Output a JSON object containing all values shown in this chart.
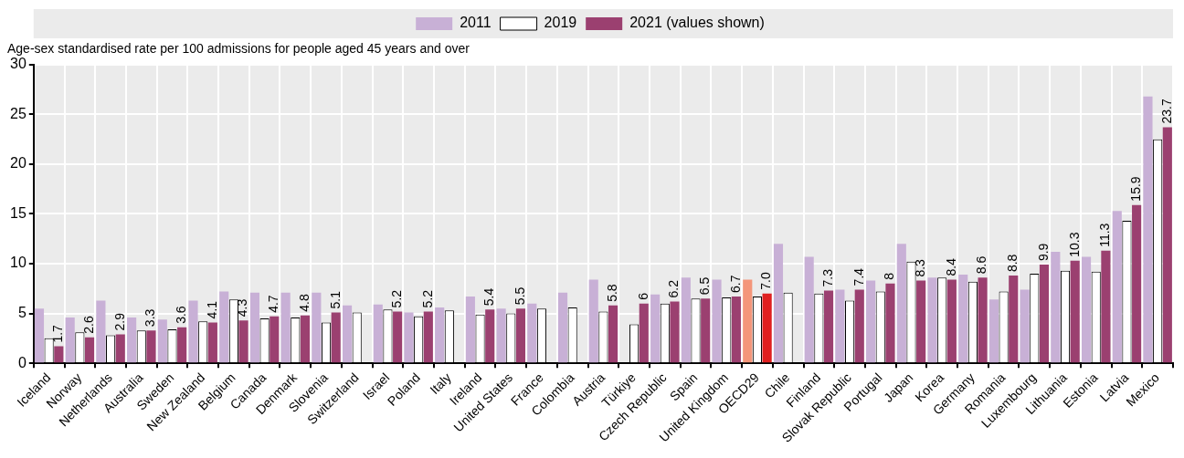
{
  "chart_data": {
    "type": "bar",
    "ylabel": "Age-sex standardised rate per 100 admissions for people aged 45 years and over",
    "categories": [
      "Iceland",
      "Norway",
      "Netherlands",
      "Australia",
      "Sweden",
      "New Zealand",
      "Belgium",
      "Canada",
      "Denmark",
      "Slovenia",
      "Switzerland",
      "Israel",
      "Poland",
      "Italy",
      "Ireland",
      "United States",
      "France",
      "Colombia",
      "Austria",
      "Türkiye",
      "Czech Republic",
      "Spain",
      "United Kingdom",
      "OECD29",
      "Chile",
      "Finland",
      "Slovak Republic",
      "Portugal",
      "Japan",
      "Korea",
      "Germany",
      "Romania",
      "Luxembourg",
      "Lithuania",
      "Estonia",
      "Latvia",
      "Mexico"
    ],
    "series": [
      {
        "name": "2011",
        "color": "#c8b0d6",
        "colors": [
          "#c8b0d6",
          "#c8b0d6",
          "#c8b0d6",
          "#c8b0d6",
          "#c8b0d6",
          "#c8b0d6",
          "#c8b0d6",
          "#c8b0d6",
          "#c8b0d6",
          "#c8b0d6",
          "#c8b0d6",
          "#c8b0d6",
          "#c8b0d6",
          "#c8b0d6",
          "#c8b0d6",
          "#c8b0d6",
          "#c8b0d6",
          "#c8b0d6",
          "#c8b0d6",
          "#c8b0d6",
          "#c8b0d6",
          "#c8b0d6",
          "#c8b0d6",
          "#f4967a",
          "#c8b0d6",
          "#c8b0d6",
          "#c8b0d6",
          "#c8b0d6",
          "#c8b0d6",
          "#c8b0d6",
          "#c8b0d6",
          "#c8b0d6",
          "#c8b0d6",
          "#c8b0d6",
          "#c8b0d6",
          "#c8b0d6",
          "#c8b0d6"
        ],
        "values": [
          5.5,
          4.6,
          6.3,
          4.6,
          4.4,
          6.3,
          7.2,
          7.1,
          7.1,
          7.1,
          5.8,
          5.9,
          5.1,
          5.6,
          6.7,
          5.5,
          6.0,
          7.1,
          8.4,
          null,
          6.9,
          8.6,
          8.4,
          8.4,
          12.0,
          10.7,
          7.4,
          8.3,
          12.0,
          8.6,
          8.9,
          6.4,
          7.4,
          11.2,
          10.7,
          15.3,
          26.8
        ]
      },
      {
        "name": "2019",
        "color": "#ffffff",
        "values": [
          2.5,
          3.1,
          2.8,
          3.3,
          3.4,
          4.2,
          6.4,
          4.5,
          4.6,
          4.1,
          5.1,
          5.4,
          4.7,
          5.3,
          4.9,
          5.0,
          5.5,
          5.6,
          5.2,
          3.9,
          6.0,
          6.5,
          6.6,
          6.7,
          7.1,
          7.0,
          6.3,
          7.2,
          10.2,
          8.6,
          8.2,
          7.2,
          9.0,
          9.3,
          9.2,
          14.3,
          22.5
        ]
      },
      {
        "name": "2021 (values shown)",
        "color": "#9b4070",
        "colors": [
          "#9b4070",
          "#9b4070",
          "#9b4070",
          "#9b4070",
          "#9b4070",
          "#9b4070",
          "#9b4070",
          "#9b4070",
          "#9b4070",
          "#9b4070",
          "#9b4070",
          "#9b4070",
          "#9b4070",
          "#9b4070",
          "#9b4070",
          "#9b4070",
          "#9b4070",
          "#9b4070",
          "#9b4070",
          "#9b4070",
          "#9b4070",
          "#9b4070",
          "#9b4070",
          "#e02020",
          "#9b4070",
          "#9b4070",
          "#9b4070",
          "#9b4070",
          "#9b4070",
          "#9b4070",
          "#9b4070",
          "#9b4070",
          "#9b4070",
          "#9b4070",
          "#9b4070",
          "#9b4070",
          "#9b4070"
        ],
        "values": [
          1.7,
          2.6,
          2.9,
          3.3,
          3.6,
          4.1,
          4.3,
          4.7,
          4.8,
          5.1,
          null,
          5.2,
          5.2,
          null,
          5.4,
          5.5,
          null,
          null,
          5.8,
          6,
          6.2,
          6.5,
          6.7,
          7.0,
          null,
          7.3,
          7.4,
          8,
          8.3,
          8.4,
          8.6,
          8.8,
          9.9,
          10.3,
          11.3,
          15.9,
          23.7
        ],
        "value_labels": [
          "1.7",
          "2.6",
          "2.9",
          "3.3",
          "3.6",
          "4.1",
          "4.3",
          "4.7",
          "4.8",
          "5.1",
          null,
          "5.2",
          "5.2",
          null,
          "5.4",
          "5.5",
          null,
          null,
          "5.8",
          "6",
          "6.2",
          "6.5",
          "6.7",
          "7.0",
          null,
          "7.3",
          "7.4",
          "8",
          "8.3",
          "8.4",
          "8.6",
          "8.8",
          "9.9",
          "10.3",
          "11.3",
          "15.9",
          "23.7"
        ]
      }
    ],
    "ylim": [
      0,
      30
    ],
    "yticks": [
      0,
      5,
      10,
      15,
      20,
      25,
      30
    ],
    "grid": true,
    "legend": "top"
  }
}
